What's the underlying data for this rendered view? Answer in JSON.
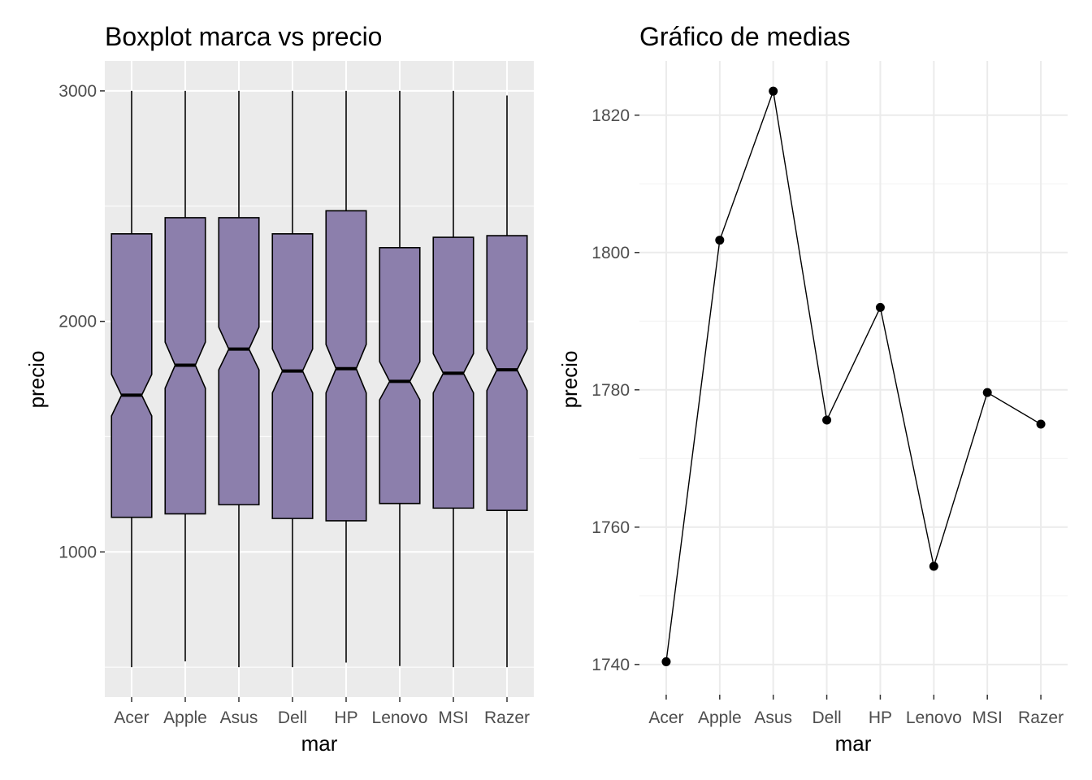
{
  "chart_data": [
    {
      "type": "boxplot",
      "title": "Boxplot marca vs precio",
      "xlabel": "mar",
      "ylabel": "precio",
      "categories": [
        "Acer",
        "Apple",
        "Asus",
        "Dell",
        "HP",
        "Lenovo",
        "MSI",
        "Razer"
      ],
      "yticks": [
        1000,
        2000,
        3000
      ],
      "ylim": [
        370,
        3130
      ],
      "notched": true,
      "fill_color": "#8c7fac",
      "background": "#ebebeb",
      "grid": true,
      "boxes": [
        {
          "min": 500,
          "q1": 1150,
          "median": 1680,
          "q3": 2380,
          "max": 3000,
          "notch_low": 1590,
          "notch_high": 1770
        },
        {
          "min": 525,
          "q1": 1165,
          "median": 1810,
          "q3": 2450,
          "max": 3000,
          "notch_low": 1710,
          "notch_high": 1910
        },
        {
          "min": 500,
          "q1": 1205,
          "median": 1880,
          "q3": 2450,
          "max": 3000,
          "notch_low": 1790,
          "notch_high": 1975
        },
        {
          "min": 500,
          "q1": 1145,
          "median": 1785,
          "q3": 2380,
          "max": 3000,
          "notch_low": 1690,
          "notch_high": 1880
        },
        {
          "min": 520,
          "q1": 1135,
          "median": 1795,
          "q3": 2480,
          "max": 3000,
          "notch_low": 1690,
          "notch_high": 1900
        },
        {
          "min": 505,
          "q1": 1210,
          "median": 1740,
          "q3": 2320,
          "max": 3000,
          "notch_low": 1660,
          "notch_high": 1825
        },
        {
          "min": 500,
          "q1": 1190,
          "median": 1775,
          "q3": 2365,
          "max": 3000,
          "notch_low": 1690,
          "notch_high": 1860
        },
        {
          "min": 500,
          "q1": 1180,
          "median": 1790,
          "q3": 2372,
          "max": 2980,
          "notch_low": 1700,
          "notch_high": 1880
        }
      ]
    },
    {
      "type": "line",
      "title": "Gráfico de medias",
      "xlabel": "mar",
      "ylabel": "precio",
      "categories": [
        "Acer",
        "Apple",
        "Asus",
        "Dell",
        "HP",
        "Lenovo",
        "MSI",
        "Razer"
      ],
      "values": [
        1740.4,
        1801.8,
        1823.5,
        1775.6,
        1792.0,
        1754.3,
        1779.6,
        1775.0
      ],
      "yticks": [
        1740,
        1760,
        1780,
        1800,
        1820
      ],
      "ylim": [
        1735.6,
        1827.9
      ],
      "markers": true,
      "line_color": "#000000",
      "grid": true
    }
  ]
}
